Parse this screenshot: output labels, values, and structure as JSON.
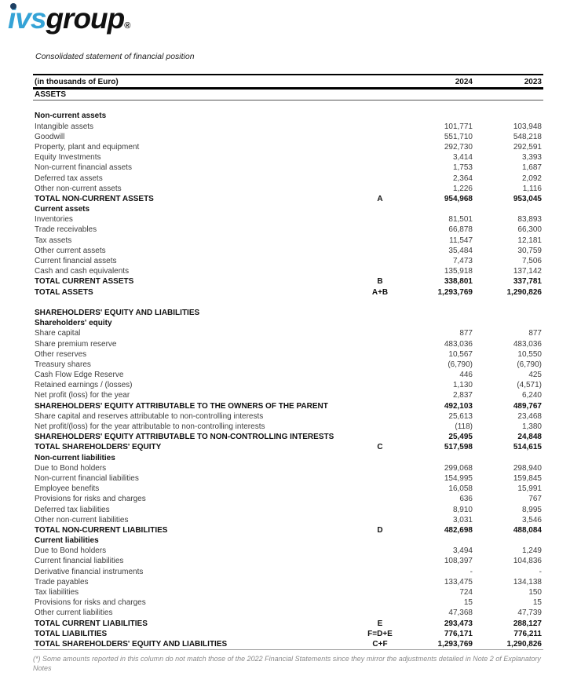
{
  "logo": {
    "ivs": "ivs",
    "group": "group",
    "registered": "®",
    "brand_blue": "#35a3d6"
  },
  "subtitle": "Consolidated statement of financial position",
  "table": {
    "unit_header": "(in thousands of Euro)",
    "col_2024": "2024",
    "col_2023": "2023",
    "rows": [
      {
        "label": "ASSETS",
        "style": "section-underline"
      },
      {
        "style": "spacer"
      },
      {
        "label": "Non-current assets",
        "style": "subsection"
      },
      {
        "label": "Intangible assets",
        "v2024": "101,771",
        "v2023": "103,948",
        "style": "item"
      },
      {
        "label": "Goodwill",
        "v2024": "551,710",
        "v2023": "548,218",
        "style": "item"
      },
      {
        "label": "Property, plant and equipment",
        "v2024": "292,730",
        "v2023": "292,591",
        "style": "item"
      },
      {
        "label": "Equity Investments",
        "v2024": "3,414",
        "v2023": "3,393",
        "style": "item"
      },
      {
        "label": "Non-current financial assets",
        "v2024": "1,753",
        "v2023": "1,687",
        "style": "item"
      },
      {
        "label": "Deferred tax assets",
        "v2024": "2,364",
        "v2023": "2,092",
        "style": "item"
      },
      {
        "label": "Other non-current assets",
        "v2024": "1,226",
        "v2023": "1,116",
        "style": "item"
      },
      {
        "label": "TOTAL NON-CURRENT ASSETS",
        "ref": "A",
        "v2024": "954,968",
        "v2023": "953,045",
        "style": "total"
      },
      {
        "label": "Current assets",
        "style": "subsection"
      },
      {
        "label": "Inventories",
        "v2024": "81,501",
        "v2023": "83,893",
        "style": "item"
      },
      {
        "label": "Trade receivables",
        "v2024": "66,878",
        "v2023": "66,300",
        "style": "item"
      },
      {
        "label": "Tax assets",
        "v2024": "11,547",
        "v2023": "12,181",
        "style": "item"
      },
      {
        "label": "Other current assets",
        "v2024": "35,484",
        "v2023": "30,759",
        "style": "item"
      },
      {
        "label": "Current financial assets",
        "v2024": "7,473",
        "v2023": "7,506",
        "style": "item"
      },
      {
        "label": "Cash and cash equivalents",
        "v2024": "135,918",
        "v2023": "137,142",
        "style": "item"
      },
      {
        "label": "TOTAL CURRENT ASSETS",
        "ref": "B",
        "v2024": "338,801",
        "v2023": "337,781",
        "style": "total"
      },
      {
        "label": "TOTAL ASSETS",
        "ref": "A+B",
        "v2024": "1,293,769",
        "v2023": "1,290,826",
        "style": "total"
      },
      {
        "style": "spacer"
      },
      {
        "label": "SHAREHOLDERS' EQUITY AND LIABILITIES",
        "style": "subsection"
      },
      {
        "label": "Shareholders' equity",
        "style": "subsection"
      },
      {
        "label": "Share capital",
        "v2024": "877",
        "v2023": "877",
        "style": "item"
      },
      {
        "label": "Share premium reserve",
        "v2024": "483,036",
        "v2023": "483,036",
        "style": "item"
      },
      {
        "label": "Other reserves",
        "v2024": "10,567",
        "v2023": "10,550",
        "style": "item"
      },
      {
        "label": "Treasury shares",
        "v2024": "(6,790)",
        "v2023": "(6,790)",
        "style": "item"
      },
      {
        "label": "Cash Flow Edge Reserve",
        "v2024": "446",
        "v2023": "425",
        "style": "item"
      },
      {
        "label": "Retained earnings / (losses)",
        "v2024": "1,130",
        "v2023": "(4,571)",
        "style": "item"
      },
      {
        "label": "Net profit (loss) for the year",
        "v2024": "2,837",
        "v2023": "6,240",
        "style": "item"
      },
      {
        "label": "SHAREHOLDERS' EQUITY ATTRIBUTABLE TO THE OWNERS OF THE PARENT",
        "v2024": "492,103",
        "v2023": "489,767",
        "style": "total"
      },
      {
        "label": "Share capital and reserves attributable to non-controlling interests",
        "v2024": "25,613",
        "v2023": "23,468",
        "style": "item"
      },
      {
        "label": "Net profit/(loss) for the year attributable to non-controlling interests",
        "v2024": "(118)",
        "v2023": "1,380",
        "style": "item"
      },
      {
        "label": "SHAREHOLDERS' EQUITY ATTRIBUTABLE TO NON-CONTROLLING INTERESTS",
        "v2024": "25,495",
        "v2023": "24,848",
        "style": "total"
      },
      {
        "label": "TOTAL SHAREHOLDERS' EQUITY",
        "ref": "C",
        "v2024": "517,598",
        "v2023": "514,615",
        "style": "total"
      },
      {
        "label": "Non-current liabilities",
        "style": "subsection"
      },
      {
        "label": "Due to Bond holders",
        "v2024": "299,068",
        "v2023": "298,940",
        "style": "item"
      },
      {
        "label": "Non-current financial liabilities",
        "v2024": "154,995",
        "v2023": "159,845",
        "style": "item"
      },
      {
        "label": "Employee benefits",
        "v2024": "16,058",
        "v2023": "15,991",
        "style": "item"
      },
      {
        "label": "Provisions for risks and charges",
        "v2024": "636",
        "v2023": "767",
        "style": "item"
      },
      {
        "label": "Deferred tax liabilities",
        "v2024": "8,910",
        "v2023": "8,995",
        "style": "item"
      },
      {
        "label": "Other non-current liabilities",
        "v2024": "3,031",
        "v2023": "3,546",
        "style": "item"
      },
      {
        "label": "TOTAL NON-CURRENT LIABILITIES",
        "ref": "D",
        "v2024": "482,698",
        "v2023": "488,084",
        "style": "total"
      },
      {
        "label": "Current liabilities",
        "style": "subsection"
      },
      {
        "label": "Due to Bond holders",
        "v2024": "3,494",
        "v2023": "1,249",
        "style": "item"
      },
      {
        "label": "Current financial liabilities",
        "v2024": "108,397",
        "v2023": "104,836",
        "style": "item"
      },
      {
        "label": "Derivative financial instruments",
        "v2024": "-",
        "v2023": "-",
        "style": "item"
      },
      {
        "label": "Trade payables",
        "v2024": "133,475",
        "v2023": "134,138",
        "style": "item"
      },
      {
        "label": "Tax liabilities",
        "v2024": "724",
        "v2023": "150",
        "style": "item"
      },
      {
        "label": "Provisions for risks and charges",
        "v2024": "15",
        "v2023": "15",
        "style": "item"
      },
      {
        "label": "Other current liabilities",
        "v2024": "47,368",
        "v2023": "47,739",
        "style": "item"
      },
      {
        "label": "TOTAL CURRENT LIABILITIES",
        "ref": "E",
        "v2024": "293,473",
        "v2023": "288,127",
        "style": "total"
      },
      {
        "label": "TOTAL LIABILITIES",
        "ref": "F=D+E",
        "v2024": "776,171",
        "v2023": "776,211",
        "style": "total"
      },
      {
        "label": "TOTAL SHAREHOLDERS' EQUITY AND LIABILITIES",
        "ref": "C+F",
        "v2024": "1,293,769",
        "v2023": "1,290,826",
        "style": "total"
      }
    ]
  },
  "footnote": "(*) Some amounts reported in this column do not match those of the 2022 Financial Statements since they mirror the adjustments detailed in Note 2 of Explanatory Notes"
}
